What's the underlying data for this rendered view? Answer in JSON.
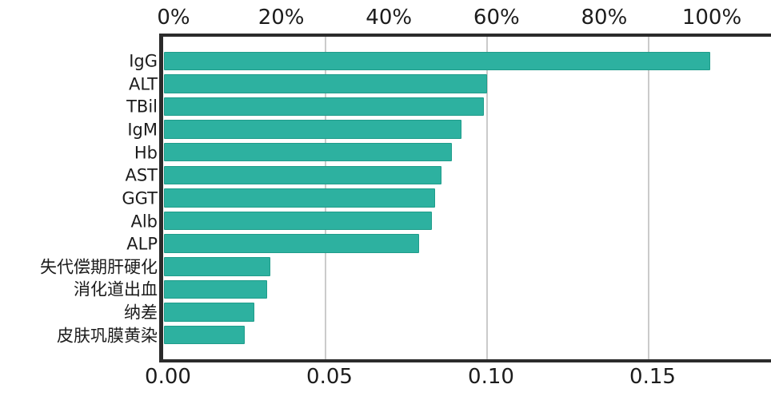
{
  "figure": {
    "background": "#ffffff"
  },
  "chart_data": {
    "type": "bar",
    "orientation": "horizontal",
    "title": "",
    "xlabel": "",
    "ylabel": "",
    "categories": [
      "IgG",
      "ALT",
      "TBil",
      "IgM",
      "Hb",
      "AST",
      "GGT",
      "Alb",
      "ALP",
      "失代偿期肝硬化",
      "消化道出血",
      "纳差",
      "皮肤巩膜黄染"
    ],
    "values": [
      0.169,
      0.1,
      0.099,
      0.092,
      0.089,
      0.086,
      0.084,
      0.083,
      0.079,
      0.033,
      0.032,
      0.028,
      0.025
    ],
    "bottom_axis": {
      "tick_values": [
        0,
        0.05,
        0.1,
        0.15
      ],
      "tick_labels": [
        "0.00",
        "0.05",
        "0.10",
        "0.15"
      ],
      "range": [
        0,
        0.188
      ]
    },
    "top_axis": {
      "tick_percents": [
        0,
        20,
        40,
        60,
        80,
        100
      ],
      "tick_labels": [
        "0%",
        "20%",
        "40%",
        "60%",
        "80%",
        "100%"
      ],
      "note": "percent of maximum bar value",
      "max_value": 0.169
    },
    "grid": {
      "show": true,
      "axis": "x",
      "color": "#cbcbcb"
    },
    "legend": null,
    "colors": {
      "bar_fill": "#2db1a0",
      "bar_edge": "#1f9c8a",
      "axis_line": "#2b2b2b",
      "text": "#1c1c1c"
    }
  }
}
